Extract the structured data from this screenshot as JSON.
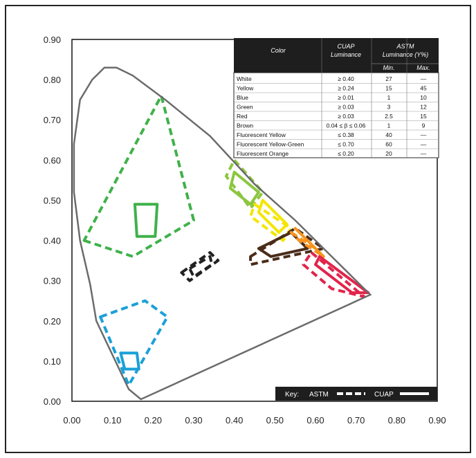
{
  "colors": {
    "locus": "#6b6b6b",
    "green": "#3fb14a",
    "light_green": "#8cc63f",
    "blue": "#1ba0d8",
    "black": "#222222",
    "yellow": "#f3e600",
    "orange": "#f7941d",
    "red": "#e2244b",
    "brown": "#4a2c1a",
    "table_header_bg": "#1e1e1e"
  },
  "chart_data": {
    "type": "scatter",
    "subtype": "chromaticity-diagram",
    "xlim": [
      0.0,
      0.9
    ],
    "ylim": [
      0.0,
      0.9
    ],
    "x_ticks": [
      "0.00",
      "0.10",
      "0.20",
      "0.30",
      "0.40",
      "0.50",
      "0.60",
      "0.70",
      "0.80",
      "0.90"
    ],
    "y_ticks": [
      "0.00",
      "0.10",
      "0.20",
      "0.30",
      "0.40",
      "0.50",
      "0.60",
      "0.70",
      "0.80",
      "0.90"
    ],
    "grid": false,
    "locus": [
      [
        0.17,
        0.005
      ],
      [
        0.14,
        0.03
      ],
      [
        0.06,
        0.2
      ],
      [
        0.045,
        0.29
      ],
      [
        0.02,
        0.4
      ],
      [
        0.005,
        0.52
      ],
      [
        0.005,
        0.64
      ],
      [
        0.02,
        0.75
      ],
      [
        0.05,
        0.8
      ],
      [
        0.08,
        0.83
      ],
      [
        0.11,
        0.83
      ],
      [
        0.15,
        0.81
      ],
      [
        0.23,
        0.75
      ],
      [
        0.34,
        0.66
      ],
      [
        0.45,
        0.54
      ],
      [
        0.55,
        0.45
      ],
      [
        0.65,
        0.35
      ],
      [
        0.735,
        0.265
      ]
    ],
    "regions": [
      {
        "key": "green",
        "style": "dashed",
        "points": [
          [
            0.03,
            0.4
          ],
          [
            0.15,
            0.36
          ],
          [
            0.3,
            0.45
          ],
          [
            0.22,
            0.76
          ]
        ]
      },
      {
        "key": "green",
        "style": "solid",
        "points": [
          [
            0.155,
            0.49
          ],
          [
            0.21,
            0.49
          ],
          [
            0.205,
            0.41
          ],
          [
            0.16,
            0.41
          ]
        ]
      },
      {
        "key": "blue",
        "style": "dashed",
        "points": [
          [
            0.07,
            0.21
          ],
          [
            0.18,
            0.25
          ],
          [
            0.235,
            0.21
          ],
          [
            0.14,
            0.04
          ]
        ]
      },
      {
        "key": "blue",
        "style": "solid",
        "points": [
          [
            0.12,
            0.12
          ],
          [
            0.16,
            0.12
          ],
          [
            0.165,
            0.08
          ],
          [
            0.13,
            0.08
          ]
        ]
      },
      {
        "key": "black",
        "style": "dashed",
        "points": [
          [
            0.27,
            0.32
          ],
          [
            0.34,
            0.37
          ],
          [
            0.36,
            0.35
          ],
          [
            0.29,
            0.3
          ]
        ]
      },
      {
        "key": "black",
        "style": "dashed",
        "points": [
          [
            0.29,
            0.33
          ],
          [
            0.34,
            0.36
          ],
          [
            0.345,
            0.34
          ],
          [
            0.3,
            0.31
          ]
        ]
      },
      {
        "key": "light_green",
        "style": "dashed",
        "points": [
          [
            0.4,
            0.6
          ],
          [
            0.47,
            0.52
          ],
          [
            0.44,
            0.48
          ],
          [
            0.38,
            0.56
          ]
        ]
      },
      {
        "key": "light_green",
        "style": "solid",
        "points": [
          [
            0.4,
            0.57
          ],
          [
            0.46,
            0.52
          ],
          [
            0.44,
            0.49
          ],
          [
            0.39,
            0.53
          ]
        ]
      },
      {
        "key": "yellow",
        "style": "dashed",
        "points": [
          [
            0.45,
            0.49
          ],
          [
            0.54,
            0.43
          ],
          [
            0.52,
            0.4
          ],
          [
            0.44,
            0.46
          ]
        ]
      },
      {
        "key": "yellow",
        "style": "solid",
        "points": [
          [
            0.47,
            0.5
          ],
          [
            0.53,
            0.44
          ],
          [
            0.51,
            0.42
          ],
          [
            0.46,
            0.47
          ]
        ]
      },
      {
        "key": "brown",
        "style": "dashed",
        "points": [
          [
            0.44,
            0.36
          ],
          [
            0.55,
            0.43
          ],
          [
            0.62,
            0.38
          ],
          [
            0.44,
            0.34
          ]
        ]
      },
      {
        "key": "brown",
        "style": "solid",
        "points": [
          [
            0.46,
            0.38
          ],
          [
            0.54,
            0.42
          ],
          [
            0.58,
            0.38
          ],
          [
            0.49,
            0.36
          ]
        ]
      },
      {
        "key": "orange",
        "style": "dashed",
        "points": [
          [
            0.54,
            0.42
          ],
          [
            0.6,
            0.38
          ],
          [
            0.62,
            0.36
          ],
          [
            0.56,
            0.4
          ]
        ]
      },
      {
        "key": "orange",
        "style": "solid",
        "points": [
          [
            0.55,
            0.43
          ],
          [
            0.6,
            0.38
          ],
          [
            0.62,
            0.36
          ],
          [
            0.57,
            0.41
          ]
        ]
      },
      {
        "key": "red",
        "style": "dashed",
        "points": [
          [
            0.59,
            0.37
          ],
          [
            0.72,
            0.26
          ],
          [
            0.64,
            0.28
          ],
          [
            0.57,
            0.34
          ]
        ]
      },
      {
        "key": "red",
        "style": "solid",
        "points": [
          [
            0.61,
            0.36
          ],
          [
            0.73,
            0.27
          ],
          [
            0.69,
            0.27
          ],
          [
            0.6,
            0.34
          ]
        ]
      }
    ],
    "table": {
      "headers": {
        "color": "Color",
        "cuap_top": "CUAP",
        "cuap_bottom": "Luminance",
        "astm_top": "ASTM",
        "astm_bottom": "Luminance (Y%)",
        "min": "Min.",
        "max": "Max."
      },
      "rows": [
        {
          "color": "White",
          "cuap": "≥ 0.40",
          "min": "27",
          "max": "—"
        },
        {
          "color": "Yellow",
          "cuap": "≥ 0.24",
          "min": "15",
          "max": "45"
        },
        {
          "color": "Blue",
          "cuap": "≥ 0.01",
          "min": "1",
          "max": "10"
        },
        {
          "color": "Green",
          "cuap": "≥ 0.03",
          "min": "3",
          "max": "12"
        },
        {
          "color": "Red",
          "cuap": "≥ 0.03",
          "min": "2.5",
          "max": "15"
        },
        {
          "color": "Brown",
          "cuap": "0.04 ≤ β ≤ 0.06",
          "min": "1",
          "max": "9"
        },
        {
          "color": "Fluorescent Yellow",
          "cuap": "≤ 0.38",
          "min": "40",
          "max": "—"
        },
        {
          "color": "Fluorescent Yellow-Green",
          "cuap": "≤ 0.70",
          "min": "60",
          "max": "—"
        },
        {
          "color": "Fluorescent  Orange",
          "cuap": "≤ 0.20",
          "min": "20",
          "max": "—"
        }
      ]
    },
    "key": {
      "label": "Key:",
      "astm": "ASTM",
      "cuap": "CUAP"
    }
  }
}
